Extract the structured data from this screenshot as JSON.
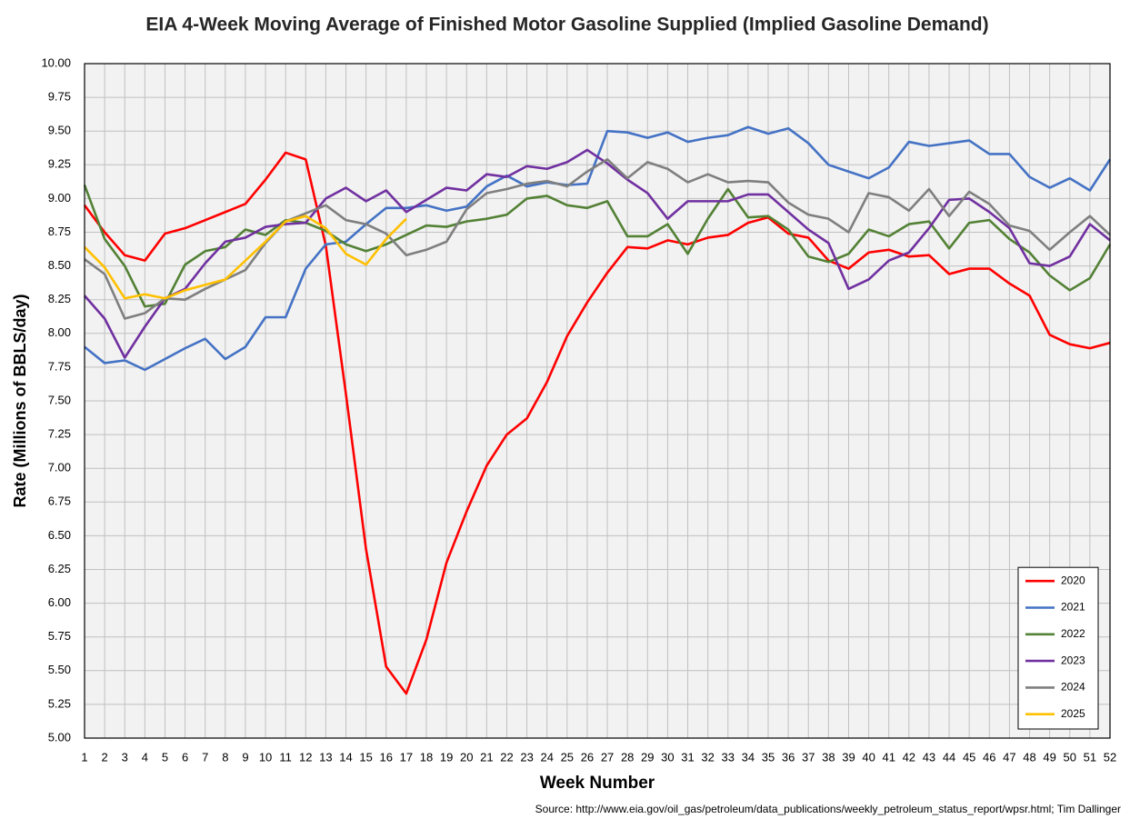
{
  "chart_data": {
    "type": "line",
    "title": "EIA 4-Week Moving Average of Finished Motor Gasoline Supplied (Implied Gasoline Demand)",
    "xlabel": "Week Number",
    "ylabel": "Rate (Millions of BBLS/day)",
    "source": "Source: http://www.eia.gov/oil_gas/petroleum/data_publications/weekly_petroleum_status_report/wpsr.html; Tim Dallinger",
    "x": [
      1,
      2,
      3,
      4,
      5,
      6,
      7,
      8,
      9,
      10,
      11,
      12,
      13,
      14,
      15,
      16,
      17,
      18,
      19,
      20,
      21,
      22,
      23,
      24,
      25,
      26,
      27,
      28,
      29,
      30,
      31,
      32,
      33,
      34,
      35,
      36,
      37,
      38,
      39,
      40,
      41,
      42,
      43,
      44,
      45,
      46,
      47,
      48,
      49,
      50,
      51,
      52
    ],
    "xlim": [
      1,
      52
    ],
    "ylim": [
      5,
      10
    ],
    "yticks": [
      {
        "value": 5,
        "label": "5.00"
      },
      5.25,
      {
        "value": 5.5,
        "label": "5.50"
      },
      5.75,
      {
        "value": 6,
        "label": "6.00"
      },
      6.25,
      {
        "value": 6.5,
        "label": "6.50"
      },
      6.75,
      {
        "value": 7,
        "label": "7.00"
      },
      7.25,
      {
        "value": 7.5,
        "label": "7.50"
      },
      7.75,
      {
        "value": 8,
        "label": "8.00"
      },
      8.25,
      {
        "value": 8.5,
        "label": "8.50"
      },
      8.75,
      {
        "value": 9,
        "label": "9.00"
      },
      9.25,
      {
        "value": 9.5,
        "label": "9.50"
      },
      9.75,
      {
        "value": 10,
        "label": "10.00"
      }
    ],
    "grid": true,
    "legend": "lower right",
    "series": [
      {
        "name": "2020",
        "color": "#ff0000",
        "values": [
          8.95,
          8.75,
          8.58,
          8.54,
          8.74,
          8.78,
          8.84,
          8.9,
          8.96,
          9.14,
          9.34,
          9.29,
          8.65,
          7.55,
          6.4,
          5.53,
          5.33,
          5.73,
          6.3,
          6.68,
          7.02,
          7.25,
          7.37,
          7.64,
          7.98,
          8.23,
          8.45,
          8.64,
          8.63,
          8.69,
          8.66,
          8.71,
          8.73,
          8.82,
          8.86,
          8.74,
          8.71,
          8.54,
          8.48,
          8.6,
          8.62,
          8.57,
          8.58,
          8.44,
          8.48,
          8.48,
          8.37,
          8.28,
          7.99,
          7.92,
          7.89,
          7.93
        ]
      },
      {
        "name": "2021",
        "color": "#4472c4",
        "values": [
          7.9,
          7.78,
          7.8,
          7.73,
          7.81,
          7.89,
          7.96,
          7.81,
          7.9,
          8.12,
          8.12,
          8.48,
          8.66,
          8.68,
          8.81,
          8.93,
          8.93,
          8.95,
          8.91,
          8.94,
          9.09,
          9.17,
          9.09,
          9.12,
          9.1,
          9.11,
          9.5,
          9.49,
          9.45,
          9.49,
          9.42,
          9.45,
          9.47,
          9.53,
          9.48,
          9.52,
          9.41,
          9.25,
          9.2,
          9.15,
          9.23,
          9.42,
          9.39,
          9.41,
          9.43,
          9.33,
          9.33,
          9.16,
          9.08,
          9.15,
          9.06,
          9.29
        ]
      },
      {
        "name": "2022",
        "color": "#538135",
        "values": [
          9.1,
          8.7,
          8.5,
          8.2,
          8.22,
          8.51,
          8.61,
          8.64,
          8.77,
          8.73,
          8.84,
          8.82,
          8.76,
          8.66,
          8.61,
          8.66,
          8.73,
          8.8,
          8.79,
          8.83,
          8.85,
          8.88,
          9.0,
          9.02,
          8.95,
          8.93,
          8.98,
          8.72,
          8.72,
          8.81,
          8.59,
          8.85,
          9.07,
          8.86,
          8.87,
          8.77,
          8.57,
          8.53,
          8.59,
          8.77,
          8.72,
          8.81,
          8.83,
          8.63,
          8.82,
          8.84,
          8.7,
          8.6,
          8.43,
          8.32,
          8.41,
          8.66
        ]
      },
      {
        "name": "2023",
        "color": "#7030a0",
        "values": [
          8.28,
          8.11,
          7.82,
          8.05,
          8.26,
          8.33,
          8.52,
          8.68,
          8.71,
          8.79,
          8.81,
          8.82,
          9.0,
          9.08,
          8.98,
          9.06,
          8.9,
          8.99,
          9.08,
          9.06,
          9.18,
          9.16,
          9.24,
          9.22,
          9.27,
          9.36,
          9.26,
          9.14,
          9.04,
          8.85,
          8.98,
          8.98,
          8.98,
          9.03,
          9.03,
          8.9,
          8.77,
          8.67,
          8.33,
          8.4,
          8.54,
          8.6,
          8.78,
          8.99,
          9.0,
          8.9,
          8.78,
          8.52,
          8.5,
          8.57,
          8.81,
          8.69
        ]
      },
      {
        "name": "2024",
        "color": "#7f7f7f",
        "values": [
          8.55,
          8.44,
          8.11,
          8.15,
          8.26,
          8.25,
          8.33,
          8.4,
          8.47,
          8.67,
          8.83,
          8.89,
          8.95,
          8.84,
          8.81,
          8.74,
          8.58,
          8.62,
          8.68,
          8.92,
          9.04,
          9.07,
          9.11,
          9.13,
          9.09,
          9.2,
          9.29,
          9.15,
          9.27,
          9.22,
          9.12,
          9.18,
          9.12,
          9.13,
          9.12,
          8.97,
          8.88,
          8.85,
          8.75,
          9.04,
          9.01,
          8.91,
          9.07,
          8.87,
          9.05,
          8.96,
          8.8,
          8.76,
          8.62,
          8.75,
          8.87,
          8.73
        ]
      },
      {
        "name": "2025",
        "color": "#ffc000",
        "values": [
          8.64,
          8.49,
          8.26,
          8.29,
          8.26,
          8.32,
          8.36,
          8.4,
          8.54,
          8.68,
          8.83,
          8.87,
          8.78,
          8.59,
          8.51,
          8.7,
          8.85,
          null,
          null,
          null,
          null,
          null,
          null,
          null,
          null,
          null,
          null,
          null,
          null,
          null,
          null,
          null,
          null,
          null,
          null,
          null,
          null,
          null,
          null,
          null,
          null,
          null,
          null,
          null,
          null,
          null,
          null,
          null,
          null,
          null,
          null,
          null
        ]
      }
    ]
  }
}
